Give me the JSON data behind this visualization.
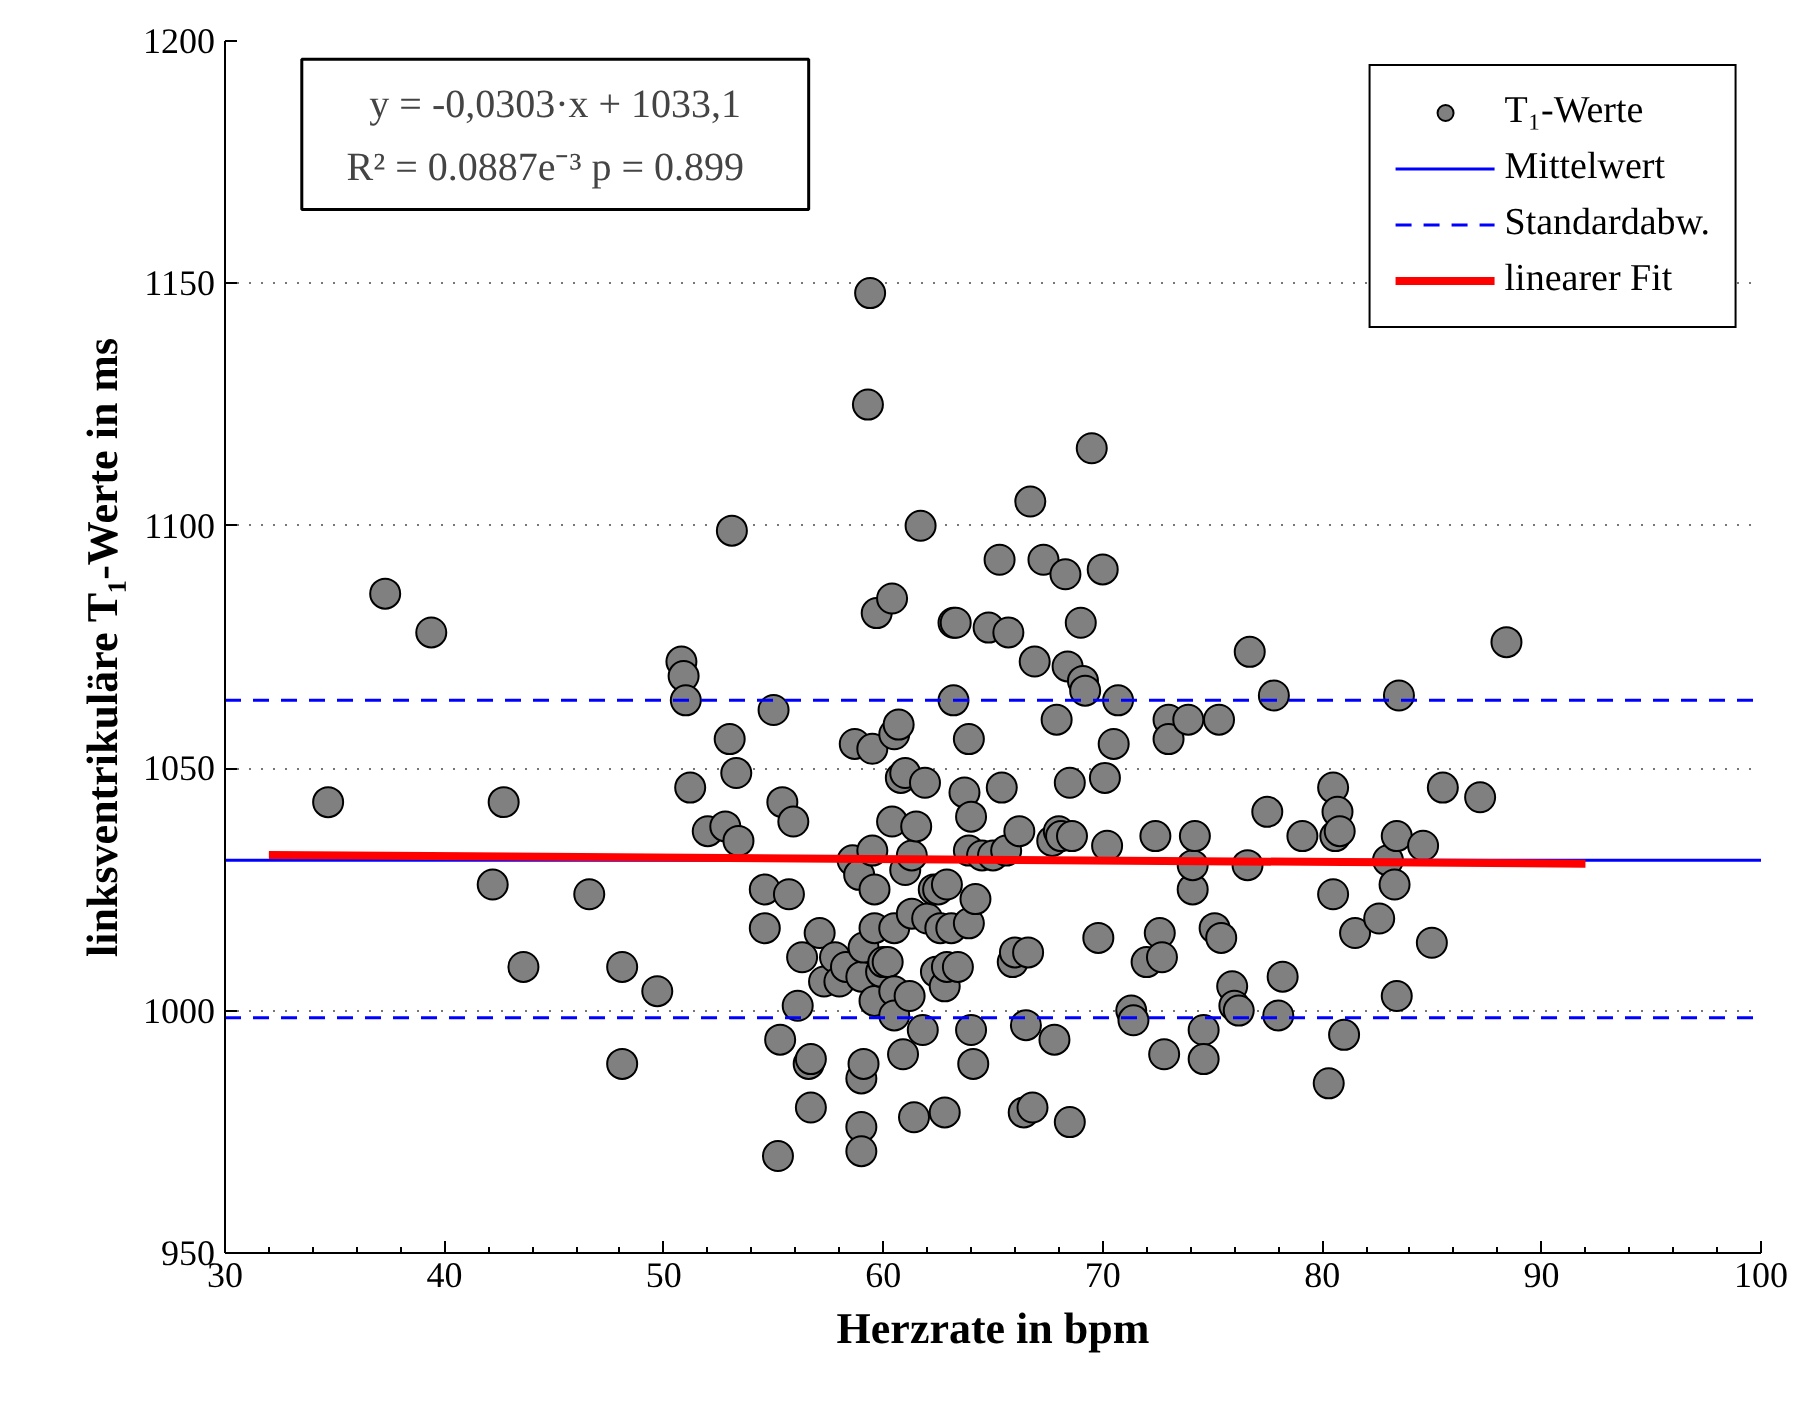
{
  "chart_data": {
    "type": "scatter",
    "xlabel": "Herzrate in bpm",
    "ylabel": "linksventrikuläre T₁-Werte in ms",
    "xlim": [
      30,
      100
    ],
    "xticks": [
      30,
      40,
      50,
      60,
      70,
      80,
      90,
      100
    ],
    "ylim": [
      950,
      1200
    ],
    "yticks": [
      950,
      1000,
      1050,
      1100,
      1150,
      1200
    ],
    "grid": "y",
    "legend": "top right",
    "annotations": [
      "y = -0,0303·x + 1033,1",
      "R² = 0.0887e⁻³   p = 0.899"
    ],
    "ref_lines": [
      {
        "axis": "y",
        "value": 1031,
        "label": "Mittelwert",
        "color": "#0000ff",
        "line_style": "solid"
      },
      {
        "axis": "y",
        "value": 1064,
        "label": "Standardabw.",
        "color": "#0000ff",
        "line_style": "dashed"
      },
      {
        "axis": "y",
        "value": 998.5,
        "label": null,
        "color": "#0000ff",
        "line_style": "dashed"
      }
    ],
    "series": [
      {
        "name": "T₁-Werte",
        "color": "#808080",
        "marker": "circle",
        "x": [
          34.7,
          37.3,
          39.4,
          42.2,
          42.7,
          43.6,
          46.6,
          48.1,
          48.1,
          49.7,
          50.8,
          50.9,
          51.0,
          51.2,
          52.0,
          52.8,
          53.0,
          53.1,
          53.4,
          53.3,
          54.6,
          54.6,
          55.0,
          55.3,
          55.4,
          55.2,
          55.7,
          55.9,
          56.1,
          56.3,
          56.6,
          56.7,
          56.7,
          57.1,
          57.3,
          57.8,
          58.0,
          58.3,
          58.6,
          58.7,
          58.9,
          59.0,
          59.0,
          59.0,
          59.0,
          59.1,
          59.1,
          59.3,
          59.4,
          59.5,
          59.5,
          59.6,
          59.6,
          59.6,
          59.7,
          59.9,
          60.0,
          60.2,
          60.4,
          60.4,
          60.5,
          60.5,
          60.5,
          60.5,
          60.7,
          60.8,
          60.9,
          61.0,
          61.0,
          61.2,
          61.3,
          61.3,
          61.4,
          61.5,
          61.7,
          61.8,
          61.9,
          62.0,
          62.3,
          62.4,
          62.5,
          62.6,
          62.8,
          62.8,
          62.9,
          62.9,
          63.1,
          63.2,
          63.2,
          63.3,
          63.4,
          63.7,
          63.9,
          63.9,
          63.9,
          64.0,
          64.0,
          64.1,
          64.2,
          64.5,
          64.8,
          65.0,
          65.3,
          65.4,
          65.6,
          65.7,
          65.9,
          66.0,
          66.2,
          66.4,
          66.5,
          66.6,
          66.7,
          66.8,
          66.9,
          67.3,
          67.7,
          67.8,
          67.9,
          68.0,
          68.1,
          68.3,
          68.4,
          68.5,
          68.5,
          68.6,
          69.0,
          69.1,
          69.2,
          69.5,
          69.8,
          70.0,
          70.1,
          70.2,
          70.5,
          70.7,
          71.3,
          71.4,
          72.0,
          72.4,
          72.6,
          72.7,
          72.8,
          73.0,
          73.0,
          73.9,
          74.1,
          74.1,
          74.2,
          74.6,
          74.6,
          75.1,
          75.3,
          75.4,
          75.9,
          76.0,
          76.2,
          76.6,
          76.7,
          77.5,
          77.8,
          78.0,
          78.2,
          79.1,
          80.3,
          80.5,
          80.5,
          80.6,
          80.7,
          80.8,
          81.0,
          81.5,
          82.6,
          83.0,
          83.3,
          83.4,
          83.5,
          83.4,
          84.6,
          85.0,
          85.5,
          87.2,
          88.4
        ],
        "values": [
          1043,
          1086,
          1078,
          1026,
          1043,
          1009,
          1024,
          1009,
          989,
          1004,
          1072,
          1069,
          1064,
          1046,
          1037,
          1038,
          1056,
          1099,
          1035,
          1049,
          1025,
          1017,
          1062,
          994,
          1043,
          970,
          1024,
          1039,
          1001,
          1011,
          989,
          980,
          990,
          1016,
          1006,
          1011,
          1006,
          1009,
          1031,
          1055,
          1028,
          1007,
          976,
          971,
          986,
          989,
          1013,
          1125,
          1148,
          1054,
          1033,
          1002,
          1025,
          1017,
          1082,
          1008,
          1010,
          1010,
          1085,
          1039,
          1004,
          1017,
          999,
          1057,
          1059,
          1048,
          991,
          1029,
          1049,
          1003,
          1020,
          1032,
          978,
          1038,
          1100,
          996,
          1047,
          1019,
          1025,
          1008,
          1025,
          1017,
          979,
          1005,
          1026,
          1009,
          1017,
          1064,
          1080,
          1080,
          1009,
          1045,
          1033,
          1018,
          1056,
          996,
          1040,
          989,
          1023,
          1032,
          1079,
          1032,
          1093,
          1046,
          1033,
          1078,
          1010,
          1012,
          1037,
          979,
          997,
          1012,
          1105,
          980,
          1072,
          1093,
          1035,
          994,
          1060,
          1037,
          1036,
          1090,
          1071,
          977,
          1047,
          1036,
          1080,
          1068,
          1066,
          1116,
          1015,
          1091,
          1048,
          1034,
          1055,
          1064,
          1000,
          998,
          1010,
          1036,
          1016,
          1011,
          991,
          1060,
          1056,
          1060,
          1025,
          1030,
          1036,
          996,
          990,
          1017,
          1060,
          1015,
          1005,
          1001,
          1000,
          1030,
          1074,
          1041,
          1065,
          999,
          1007,
          1036,
          985,
          1046,
          1024,
          1036,
          1041,
          1037,
          995,
          1016,
          1019,
          1031,
          1026,
          1036,
          1065,
          1003,
          1034,
          1014,
          1046,
          1044,
          1076
        ]
      },
      {
        "name": "linearer Fit",
        "type": "line",
        "color": "#ff0000",
        "line_style": "solid",
        "marker": "none",
        "x": [
          32,
          92
        ],
        "values": [
          1032.1,
          1030.3
        ]
      }
    ]
  }
}
